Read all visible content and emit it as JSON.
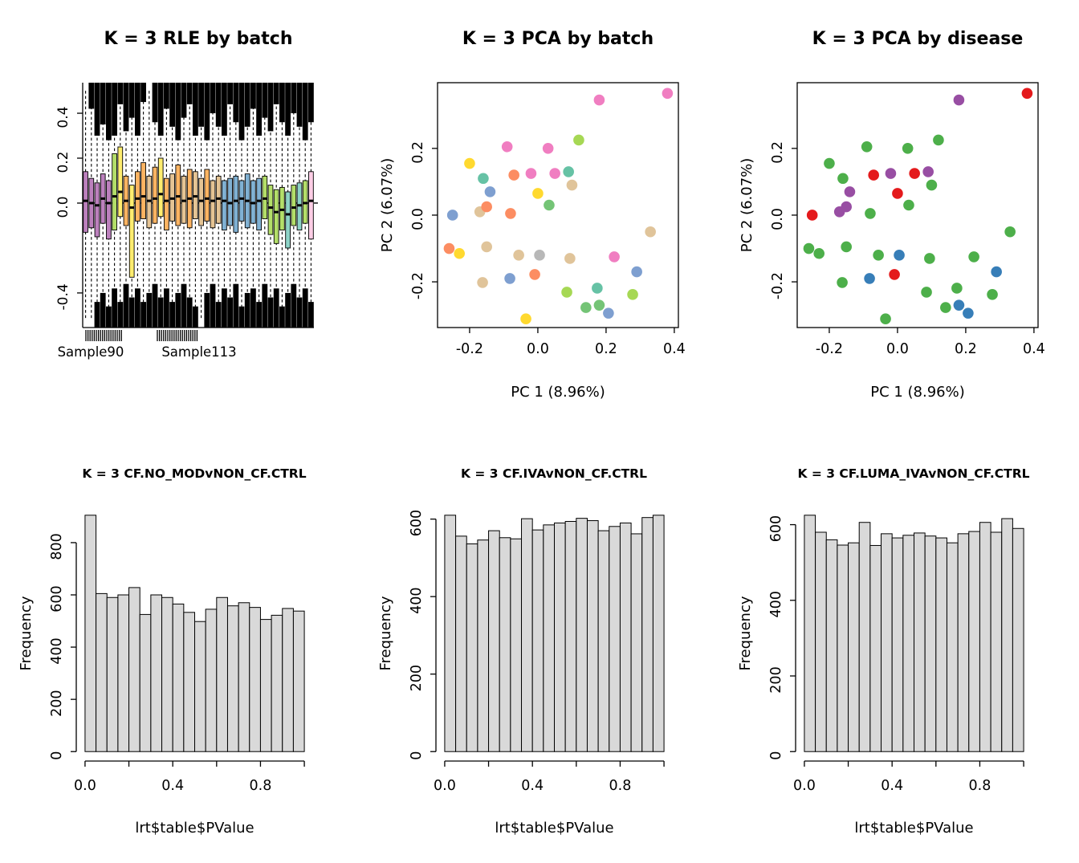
{
  "figure": {
    "background": "#FFFFFF",
    "text_color": "#000000",
    "hist_fill": "#D9D9D9"
  },
  "chart_data": [
    {
      "type": "boxplot",
      "title": "K = 3 RLE by batch",
      "ylim": [
        -0.554,
        0.536
      ],
      "y_tick_vals": [
        0.4,
        0.2,
        0.0,
        -0.4
      ],
      "y_tick_labels": [
        "0.4",
        "0.2",
        "0.0",
        "-0.4"
      ],
      "zero_line": 0,
      "whisker_lo": -0.52,
      "whisker_hi": 0.5,
      "x_labels": [
        {
          "text": "Sample90",
          "x": 113
        },
        {
          "text": "Sample113",
          "x": 248
        }
      ],
      "palette": [
        "#BC80BD",
        "#B3DE69",
        "#FFED6F",
        "#FDB462",
        "#E5C494",
        "#80B1D3",
        "#8DD3C7",
        "#FCCDE5"
      ],
      "sample_columns": [
        "color_index",
        "median",
        "q1",
        "q3",
        "top_blob_to",
        "bottom_blob_from"
      ],
      "samples": [
        [
          0,
          0.01,
          -0.13,
          0.14,
          null,
          null
        ],
        [
          0,
          0.0,
          -0.11,
          0.11,
          0.42,
          null
        ],
        [
          0,
          -0.01,
          -0.15,
          0.09,
          0.3,
          -0.44
        ],
        [
          0,
          0.02,
          -0.09,
          0.13,
          0.35,
          -0.4
        ],
        [
          0,
          0.0,
          -0.16,
          0.1,
          0.28,
          -0.46
        ],
        [
          1,
          0.03,
          -0.12,
          0.22,
          0.3,
          -0.38
        ],
        [
          2,
          0.05,
          -0.06,
          0.25,
          0.44,
          -0.44
        ],
        [
          3,
          0.01,
          -0.1,
          0.12,
          0.32,
          -0.36
        ],
        [
          2,
          -0.02,
          -0.33,
          0.08,
          0.38,
          -0.42
        ],
        [
          3,
          0.02,
          -0.08,
          0.14,
          0.3,
          -0.38
        ],
        [
          3,
          0.03,
          -0.07,
          0.18,
          0.45,
          -0.44
        ],
        [
          4,
          0.01,
          -0.11,
          0.12,
          null,
          -0.4
        ],
        [
          3,
          0.02,
          -0.09,
          0.16,
          0.36,
          -0.36
        ],
        [
          2,
          0.04,
          -0.06,
          0.2,
          0.3,
          -0.42
        ],
        [
          3,
          0.01,
          -0.12,
          0.11,
          0.42,
          -0.38
        ],
        [
          4,
          0.02,
          -0.08,
          0.13,
          0.34,
          -0.44
        ],
        [
          3,
          0.03,
          -0.1,
          0.17,
          0.28,
          -0.4
        ],
        [
          4,
          0.01,
          -0.09,
          0.12,
          0.38,
          -0.36
        ],
        [
          3,
          0.02,
          -0.11,
          0.15,
          0.44,
          -0.42
        ],
        [
          4,
          0.03,
          -0.07,
          0.14,
          0.3,
          -0.46
        ],
        [
          4,
          0.01,
          -0.1,
          0.11,
          0.34,
          null
        ],
        [
          3,
          0.02,
          -0.08,
          0.15,
          0.28,
          -0.4
        ],
        [
          4,
          0.01,
          -0.11,
          0.1,
          0.4,
          -0.36
        ],
        [
          4,
          0.02,
          -0.09,
          0.12,
          0.34,
          -0.44
        ],
        [
          5,
          0.01,
          -0.12,
          0.1,
          0.3,
          -0.38
        ],
        [
          5,
          0.0,
          -0.1,
          0.11,
          0.44,
          -0.42
        ],
        [
          5,
          0.01,
          -0.13,
          0.12,
          0.36,
          -0.36
        ],
        [
          5,
          0.02,
          -0.08,
          0.1,
          0.28,
          -0.46
        ],
        [
          5,
          0.01,
          -0.11,
          0.13,
          0.34,
          -0.4
        ],
        [
          5,
          0.0,
          -0.09,
          0.1,
          0.42,
          -0.38
        ],
        [
          5,
          0.01,
          -0.12,
          0.11,
          0.3,
          -0.44
        ],
        [
          1,
          0.02,
          -0.07,
          0.12,
          0.38,
          -0.36
        ],
        [
          1,
          -0.02,
          -0.14,
          0.08,
          0.32,
          -0.42
        ],
        [
          1,
          -0.04,
          -0.18,
          0.06,
          0.44,
          -0.38
        ],
        [
          1,
          -0.03,
          -0.12,
          0.07,
          0.36,
          -0.46
        ],
        [
          6,
          -0.05,
          -0.2,
          0.05,
          0.3,
          -0.4
        ],
        [
          1,
          -0.02,
          -0.1,
          0.08,
          0.4,
          -0.36
        ],
        [
          6,
          -0.01,
          -0.12,
          0.09,
          0.34,
          -0.42
        ],
        [
          1,
          0.0,
          -0.09,
          0.1,
          0.28,
          -0.38
        ],
        [
          7,
          0.01,
          -0.16,
          0.14,
          0.36,
          -0.44
        ]
      ]
    },
    {
      "type": "scatter",
      "title": "K = 3 PCA by batch",
      "xlabel": "PC 1 (8.96%)",
      "ylabel": "PC 2 (6.07%)",
      "xlim": [
        -0.294,
        0.412
      ],
      "ylim": [
        -0.337,
        0.397
      ],
      "x_tick_vals": [
        -0.2,
        0.0,
        0.2,
        0.4
      ],
      "x_tick_labels": [
        "-0.2",
        "0.0",
        "0.2",
        "0.4"
      ],
      "y_tick_vals": [
        -0.2,
        0.0,
        0.2
      ],
      "y_tick_labels": [
        "-0.2",
        "0.0",
        "0.2"
      ],
      "color_field": "batch_color"
    },
    {
      "type": "scatter",
      "title": "K = 3 PCA by disease",
      "xlabel": "PC 1 (8.96%)",
      "ylabel": "PC 2 (6.07%)",
      "xlim": [
        -0.294,
        0.412
      ],
      "ylim": [
        -0.337,
        0.397
      ],
      "x_tick_vals": [
        -0.2,
        0.0,
        0.2,
        0.4
      ],
      "x_tick_labels": [
        "-0.2",
        "0.0",
        "0.2",
        "0.4"
      ],
      "y_tick_vals": [
        -0.2,
        0.0,
        0.2
      ],
      "y_tick_labels": [
        "-0.2",
        "0.0",
        "0.2"
      ],
      "color_field": "disease_color"
    },
    {
      "type": "histogram",
      "title": "K = 3 CF.NO_MODvNON_CF.CTRL",
      "xlabel": "lrt$table$PValue",
      "ylabel": "Frequency",
      "bin_start": 0,
      "bin_width": 0.05,
      "counts": [
        905,
        605,
        590,
        600,
        628,
        525,
        600,
        590,
        565,
        533,
        498,
        545,
        590,
        558,
        570,
        552,
        506,
        522,
        548,
        538
      ],
      "y_tick_vals": [
        0,
        200,
        400,
        600,
        800
      ],
      "y_tick_labels": [
        "0",
        "200",
        "400",
        "600",
        "800"
      ],
      "x_tick_vals": [
        0,
        0.2,
        0.4,
        0.6,
        0.8,
        1.0
      ],
      "x_tick_labels": [
        "0.0",
        "",
        "0.4",
        "",
        "0.8",
        ""
      ]
    },
    {
      "type": "histogram",
      "title": "K = 3 CF.IVAvNON_CF.CTRL",
      "xlabel": "lrt$table$PValue",
      "ylabel": "Frequency",
      "bin_start": 0,
      "bin_width": 0.05,
      "counts": [
        610,
        556,
        536,
        546,
        570,
        552,
        549,
        601,
        572,
        585,
        590,
        594,
        602,
        596,
        570,
        581,
        590,
        562,
        604,
        610
      ],
      "y_tick_vals": [
        0,
        200,
        400,
        600
      ],
      "y_tick_labels": [
        "0",
        "200",
        "400",
        "600"
      ],
      "x_tick_vals": [
        0,
        0.2,
        0.4,
        0.6,
        0.8,
        1.0
      ],
      "x_tick_labels": [
        "0.0",
        "",
        "0.4",
        "",
        "0.8",
        ""
      ]
    },
    {
      "type": "histogram",
      "title": "K = 3 CF.LUMA_IVAvNON_CF.CTRL",
      "xlabel": "lrt$table$PValue",
      "ylabel": "Frequency",
      "bin_start": 0,
      "bin_width": 0.05,
      "counts": [
        625,
        580,
        560,
        546,
        552,
        606,
        545,
        576,
        565,
        572,
        578,
        570,
        565,
        552,
        576,
        582,
        606,
        580,
        616,
        590
      ],
      "y_tick_vals": [
        0,
        200,
        400,
        600
      ],
      "y_tick_labels": [
        "0",
        "200",
        "400",
        "600"
      ],
      "x_tick_vals": [
        0,
        0.2,
        0.4,
        0.6,
        0.8,
        1.0
      ],
      "x_tick_labels": [
        "0.0",
        "",
        "0.4",
        "",
        "0.8",
        ""
      ]
    }
  ],
  "pca_points": {
    "columns": [
      "x",
      "y",
      "batch_color",
      "disease_color"
    ],
    "batch_palette": [
      "#F07EC1",
      "#FFD92F",
      "#FC8D62",
      "#E0C49A",
      "#7E9FD0",
      "#66C2A5",
      "#A6D854",
      "#74C476",
      "#B8B8B8"
    ],
    "disease_palette": [
      "#4DAF4A",
      "#E41A1C",
      "#377EB8",
      "#984EA3"
    ],
    "rows": [
      [
        -0.2,
        0.155,
        "#FFD92F",
        "#4DAF4A"
      ],
      [
        -0.09,
        0.205,
        "#F07EC1",
        "#4DAF4A"
      ],
      [
        0.03,
        0.2,
        "#F07EC1",
        "#4DAF4A"
      ],
      [
        0.12,
        0.225,
        "#A6D854",
        "#4DAF4A"
      ],
      [
        0.18,
        0.345,
        "#F07EC1",
        "#984EA3"
      ],
      [
        0.38,
        0.365,
        "#F07EC1",
        "#E41A1C"
      ],
      [
        -0.16,
        0.11,
        "#66C2A5",
        "#4DAF4A"
      ],
      [
        -0.14,
        0.07,
        "#7E9FD0",
        "#984EA3"
      ],
      [
        -0.07,
        0.12,
        "#FC8D62",
        "#E41A1C"
      ],
      [
        -0.02,
        0.125,
        "#F07EC1",
        "#984EA3"
      ],
      [
        0.05,
        0.125,
        "#F07EC1",
        "#E41A1C"
      ],
      [
        0.09,
        0.13,
        "#66C2A5",
        "#984EA3"
      ],
      [
        0.1,
        0.09,
        "#E0C49A",
        "#4DAF4A"
      ],
      [
        0.0,
        0.065,
        "#FFD92F",
        "#E41A1C"
      ],
      [
        -0.25,
        0.0,
        "#7E9FD0",
        "#E41A1C"
      ],
      [
        -0.08,
        0.005,
        "#FC8D62",
        "#4DAF4A"
      ],
      [
        0.033,
        0.03,
        "#74C476",
        "#4DAF4A"
      ],
      [
        -0.17,
        0.01,
        "#E0C49A",
        "#984EA3"
      ],
      [
        -0.15,
        0.025,
        "#FC8D62",
        "#984EA3"
      ],
      [
        -0.26,
        -0.1,
        "#FC8D62",
        "#4DAF4A"
      ],
      [
        -0.23,
        -0.115,
        "#FFD92F",
        "#4DAF4A"
      ],
      [
        -0.15,
        -0.095,
        "#E0C49A",
        "#4DAF4A"
      ],
      [
        -0.056,
        -0.12,
        "#E0C49A",
        "#4DAF4A"
      ],
      [
        0.005,
        -0.12,
        "#B8B8B8",
        "#377EB8"
      ],
      [
        0.094,
        -0.13,
        "#E0C49A",
        "#4DAF4A"
      ],
      [
        0.224,
        -0.125,
        "#F07EC1",
        "#4DAF4A"
      ],
      [
        -0.082,
        -0.19,
        "#7E9FD0",
        "#377EB8"
      ],
      [
        -0.009,
        -0.178,
        "#FC8D62",
        "#E41A1C"
      ],
      [
        -0.162,
        -0.202,
        "#E0C49A",
        "#4DAF4A"
      ],
      [
        0.085,
        -0.231,
        "#A6D854",
        "#4DAF4A"
      ],
      [
        0.174,
        -0.219,
        "#66C2A5",
        "#4DAF4A"
      ],
      [
        0.278,
        -0.238,
        "#A6D854",
        "#4DAF4A"
      ],
      [
        0.141,
        -0.277,
        "#74C476",
        "#4DAF4A"
      ],
      [
        0.207,
        -0.294,
        "#7E9FD0",
        "#377EB8"
      ],
      [
        -0.035,
        -0.311,
        "#FFD92F",
        "#4DAF4A"
      ],
      [
        0.18,
        -0.27,
        "#74C476",
        "#377EB8"
      ],
      [
        0.33,
        -0.05,
        "#E0C49A",
        "#4DAF4A"
      ],
      [
        0.29,
        -0.17,
        "#7E9FD0",
        "#377EB8"
      ]
    ]
  }
}
